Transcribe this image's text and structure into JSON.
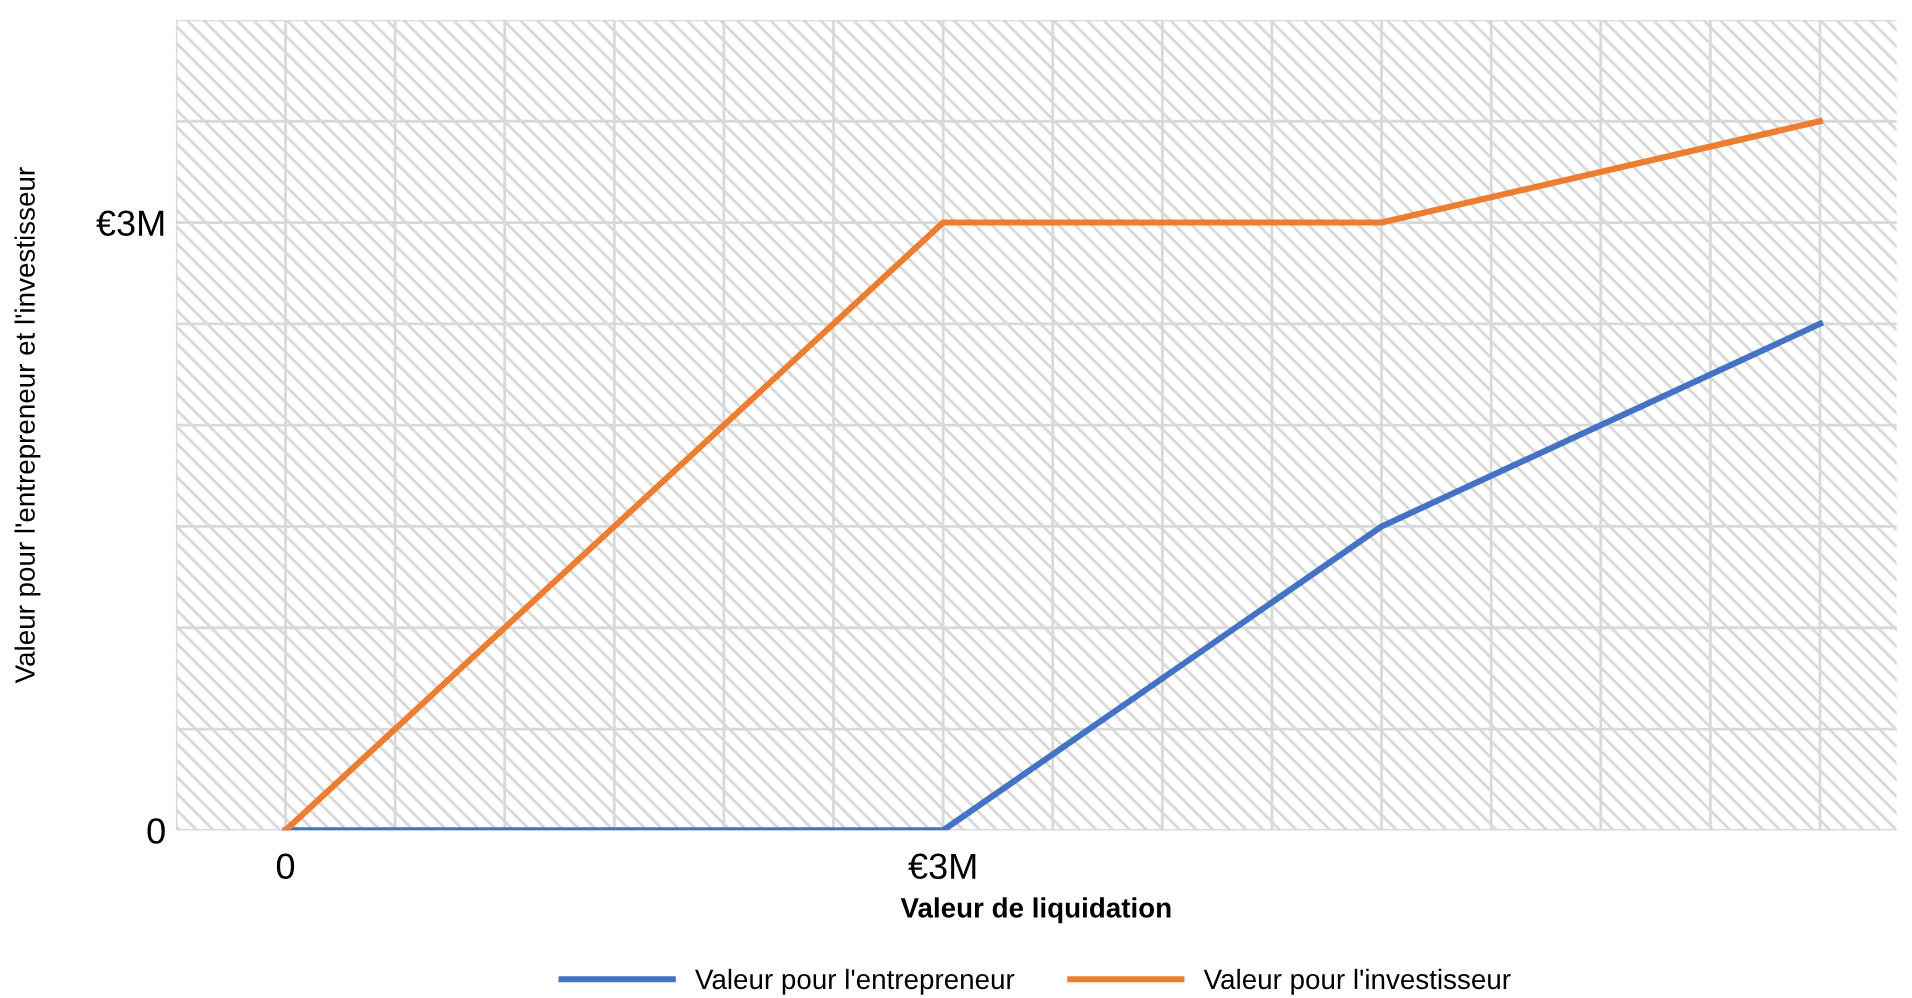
{
  "chart_data": {
    "type": "line",
    "xlabel": "Valeur de liquidation",
    "ylabel": "Valeur pour l'entrepreneur et l'investisseur",
    "x": [
      0,
      3,
      5,
      7
    ],
    "series": [
      {
        "name": "Valeur pour l'entrepreneur",
        "color": "#4472c4",
        "values": [
          0,
          0,
          1.5,
          2.5
        ]
      },
      {
        "name": "Valeur pour l'investisseur",
        "color": "#ed7d31",
        "values": [
          0,
          3,
          3,
          3.5
        ]
      }
    ],
    "xlim": [
      -0.5,
      7.35
    ],
    "ylim": [
      0,
      4
    ],
    "xticks": [
      {
        "value": -0.5,
        "label": null
      },
      0,
      {
        "value": 0.5,
        "label": null
      },
      {
        "value": 1,
        "label": null
      },
      {
        "value": 1.5,
        "label": null
      },
      {
        "value": 2,
        "label": null
      },
      {
        "value": 2.5,
        "label": null
      },
      {
        "value": 3,
        "label": "€3M"
      },
      {
        "value": 3.5,
        "label": null
      },
      {
        "value": 4,
        "label": null
      },
      {
        "value": 4.5,
        "label": null
      },
      {
        "value": 5,
        "label": null
      },
      {
        "value": 5.5,
        "label": null
      },
      {
        "value": 6,
        "label": null
      },
      {
        "value": 6.5,
        "label": null
      },
      {
        "value": 7,
        "label": null
      }
    ],
    "yticks": [
      0,
      {
        "value": 0.5,
        "label": null
      },
      {
        "value": 1,
        "label": null
      },
      {
        "value": 1.5,
        "label": null
      },
      {
        "value": 2,
        "label": null
      },
      {
        "value": 2.5,
        "label": null
      },
      {
        "value": 3,
        "label": "€3M"
      },
      {
        "value": 3.5,
        "label": null
      },
      {
        "value": 4,
        "label": null
      }
    ],
    "grid": true,
    "legend": "bottom",
    "marker": "none",
    "line_style": "solid"
  }
}
